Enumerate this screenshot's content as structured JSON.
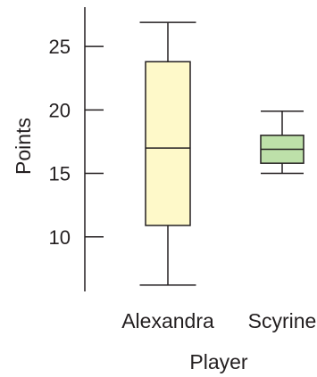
{
  "chart_data": {
    "type": "box",
    "title": "",
    "xlabel": "Player",
    "ylabel": "Points",
    "yticks": [
      10,
      15,
      20,
      25
    ],
    "ylim": [
      5.7,
      28.1
    ],
    "grid": false,
    "categories": [
      "Alexandra",
      "Scyrine"
    ],
    "boxes": [
      {
        "category": "Alexandra",
        "min": 6.2,
        "q1": 10.9,
        "median": 17.0,
        "q3": 23.8,
        "max": 26.9,
        "color": "#fef9c9"
      },
      {
        "category": "Scyrine",
        "min": 15.0,
        "q1": 15.8,
        "median": 16.9,
        "q3": 18.0,
        "max": 19.9,
        "color": "#bde0a9"
      }
    ],
    "line_color": "#231f20"
  }
}
